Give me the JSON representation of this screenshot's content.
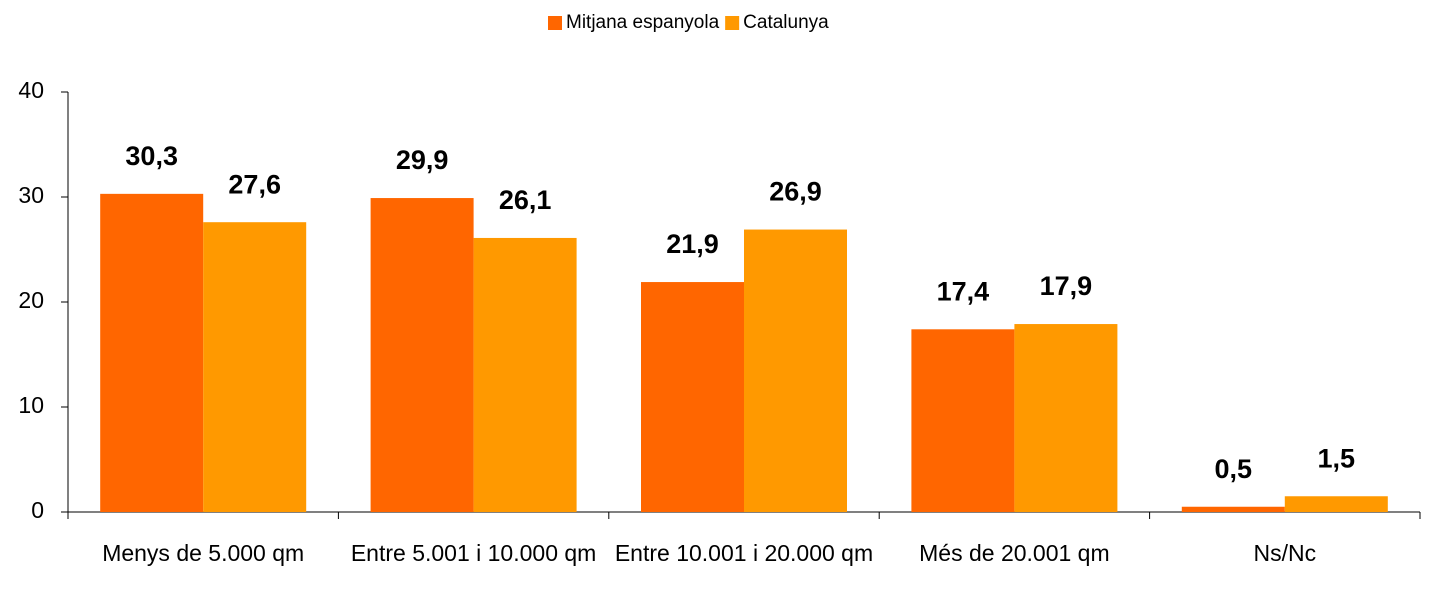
{
  "chart_data": {
    "type": "bar",
    "categories": [
      "Menys de 5.000 qm",
      "Entre 5.001 i 10.000 qm",
      "Entre 10.001 i 20.000 qm",
      "Més de 20.001 qm",
      "Ns/Nc"
    ],
    "series": [
      {
        "name": "Mitjana espanyola",
        "color": "#ff6600",
        "values": [
          30.3,
          29.9,
          21.9,
          17.4,
          0.5
        ],
        "value_labels": [
          "30,3",
          "29,9",
          "21,9",
          "17,4",
          "0,5"
        ]
      },
      {
        "name": "Catalunya",
        "color": "#ff9900",
        "values": [
          27.6,
          26.1,
          26.9,
          17.9,
          1.5
        ],
        "value_labels": [
          "27,6",
          "26,1",
          "26,9",
          "17,9",
          "1,5"
        ]
      }
    ],
    "ylim": [
      0,
      40
    ],
    "yticks": [
      0,
      10,
      20,
      30,
      40
    ],
    "legend": "top"
  }
}
